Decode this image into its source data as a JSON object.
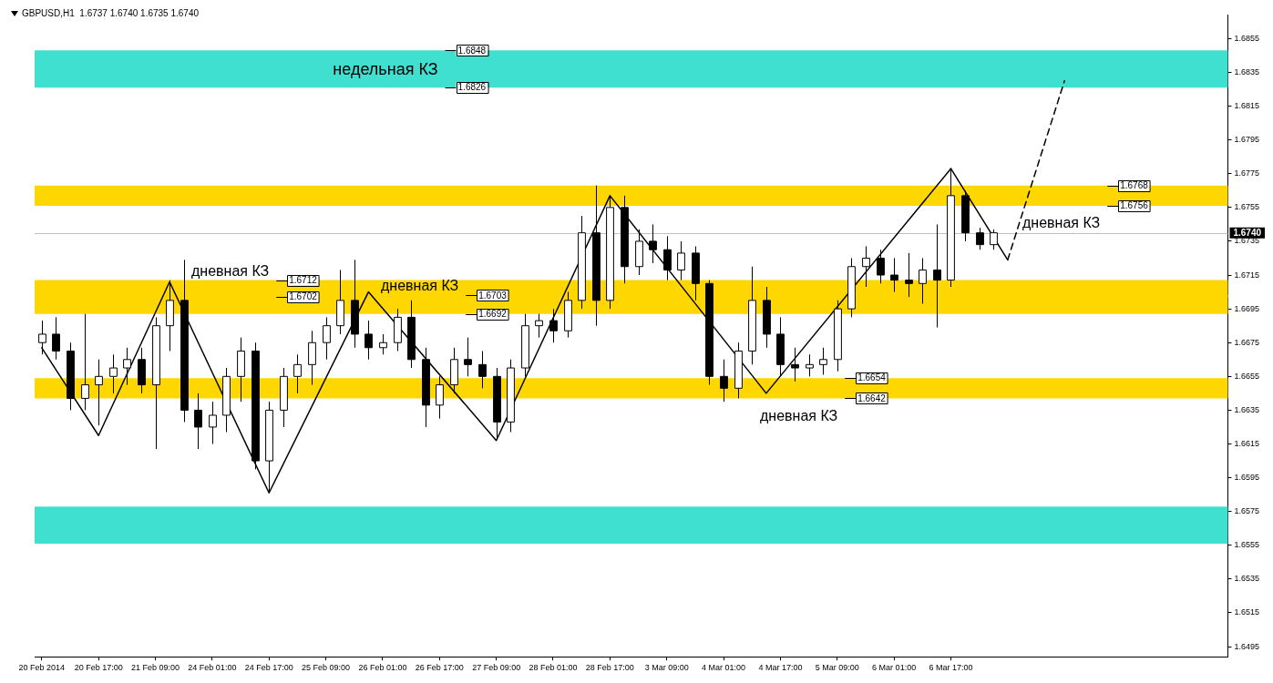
{
  "chart_data": {
    "type": "candlestick",
    "title": "GBPUSD,H1  1.6737 1.6740 1.6735 1.6740",
    "categories": [
      "20 Feb 2014",
      null,
      null,
      null,
      "20 Feb 17:00",
      null,
      null,
      null,
      "21 Feb 09:00",
      null,
      null,
      null,
      "24 Feb 01:00",
      null,
      null,
      null,
      "24 Feb 17:00",
      null,
      null,
      null,
      "25 Feb 09:00",
      null,
      null,
      null,
      "26 Feb 01:00",
      null,
      null,
      null,
      "26 Feb 17:00",
      null,
      null,
      null,
      "27 Feb 09:00",
      null,
      null,
      null,
      "28 Feb 01:00",
      null,
      null,
      null,
      "28 Feb 17:00",
      null,
      null,
      null,
      "3 Mar 09:00",
      null,
      null,
      null,
      "4 Mar 01:00",
      null,
      null,
      null,
      "4 Mar 17:00",
      null,
      null,
      null,
      "5 Mar 09:00",
      null,
      null,
      null,
      "6 Mar 01:00",
      null,
      null,
      null,
      "6 Mar 17:00",
      null,
      null,
      null,
      null,
      null,
      null,
      null,
      null,
      null,
      null,
      null,
      null,
      null,
      null,
      null,
      null,
      null,
      null,
      null
    ],
    "ohlc": [
      [
        1.6675,
        1.6688,
        1.6668,
        1.668
      ],
      [
        1.668,
        1.669,
        1.6665,
        1.667
      ],
      [
        1.667,
        1.6675,
        1.6635,
        1.6642
      ],
      [
        1.6642,
        1.6692,
        1.6635,
        1.665
      ],
      [
        1.665,
        1.6665,
        1.6626,
        1.6655
      ],
      [
        1.6655,
        1.6668,
        1.6645,
        1.666
      ],
      [
        1.666,
        1.6672,
        1.665,
        1.6665
      ],
      [
        1.6665,
        1.6672,
        1.6645,
        1.665
      ],
      [
        1.665,
        1.669,
        1.6612,
        1.6685
      ],
      [
        1.6685,
        1.6712,
        1.667,
        1.67
      ],
      [
        1.67,
        1.6724,
        1.6628,
        1.6635
      ],
      [
        1.6635,
        1.6645,
        1.6612,
        1.6625
      ],
      [
        1.6625,
        1.664,
        1.6615,
        1.6632
      ],
      [
        1.6632,
        1.666,
        1.6622,
        1.6655
      ],
      [
        1.6655,
        1.6678,
        1.664,
        1.667
      ],
      [
        1.667,
        1.6675,
        1.66,
        1.6605
      ],
      [
        1.6605,
        1.664,
        1.6587,
        1.6635
      ],
      [
        1.6635,
        1.666,
        1.6625,
        1.6655
      ],
      [
        1.6655,
        1.6668,
        1.6645,
        1.6662
      ],
      [
        1.6662,
        1.6682,
        1.665,
        1.6675
      ],
      [
        1.6675,
        1.669,
        1.6665,
        1.6685
      ],
      [
        1.6685,
        1.6718,
        1.668,
        1.67
      ],
      [
        1.67,
        1.6724,
        1.6672,
        1.668
      ],
      [
        1.668,
        1.6688,
        1.6665,
        1.6672
      ],
      [
        1.6672,
        1.668,
        1.6668,
        1.6675
      ],
      [
        1.6675,
        1.6695,
        1.667,
        1.669
      ],
      [
        1.669,
        1.67,
        1.666,
        1.6665
      ],
      [
        1.6665,
        1.6672,
        1.6625,
        1.6638
      ],
      [
        1.6638,
        1.6655,
        1.663,
        1.665
      ],
      [
        1.665,
        1.6672,
        1.6645,
        1.6665
      ],
      [
        1.6665,
        1.6678,
        1.6655,
        1.6662
      ],
      [
        1.6662,
        1.667,
        1.6648,
        1.6655
      ],
      [
        1.6655,
        1.666,
        1.6618,
        1.6628
      ],
      [
        1.6628,
        1.6665,
        1.6622,
        1.666
      ],
      [
        1.666,
        1.6692,
        1.6655,
        1.6685
      ],
      [
        1.6685,
        1.6692,
        1.6678,
        1.6688
      ],
      [
        1.6688,
        1.6695,
        1.6675,
        1.6682
      ],
      [
        1.6682,
        1.6705,
        1.6678,
        1.67
      ],
      [
        1.67,
        1.675,
        1.6695,
        1.674
      ],
      [
        1.674,
        1.6768,
        1.6685,
        1.67
      ],
      [
        1.67,
        1.6762,
        1.6695,
        1.6755
      ],
      [
        1.6755,
        1.6762,
        1.671,
        1.672
      ],
      [
        1.672,
        1.6742,
        1.6715,
        1.6735
      ],
      [
        1.6735,
        1.6745,
        1.6722,
        1.673
      ],
      [
        1.673,
        1.6738,
        1.6712,
        1.6718
      ],
      [
        1.6718,
        1.6735,
        1.6712,
        1.6728
      ],
      [
        1.6728,
        1.6732,
        1.67,
        1.671
      ],
      [
        1.671,
        1.6712,
        1.665,
        1.6655
      ],
      [
        1.6655,
        1.6665,
        1.664,
        1.6648
      ],
      [
        1.6648,
        1.6675,
        1.6642,
        1.667
      ],
      [
        1.667,
        1.672,
        1.6662,
        1.67
      ],
      [
        1.67,
        1.6708,
        1.6672,
        1.668
      ],
      [
        1.668,
        1.669,
        1.6655,
        1.6662
      ],
      [
        1.6662,
        1.6672,
        1.6652,
        1.666
      ],
      [
        1.666,
        1.6668,
        1.6655,
        1.6662
      ],
      [
        1.6662,
        1.6672,
        1.6656,
        1.6665
      ],
      [
        1.6665,
        1.67,
        1.6658,
        1.6695
      ],
      [
        1.6695,
        1.6725,
        1.669,
        1.672
      ],
      [
        1.672,
        1.6732,
        1.6708,
        1.6725
      ],
      [
        1.6725,
        1.673,
        1.671,
        1.6715
      ],
      [
        1.6715,
        1.6725,
        1.6705,
        1.6712
      ],
      [
        1.6712,
        1.6728,
        1.6702,
        1.671
      ],
      [
        1.671,
        1.6725,
        1.6698,
        1.6718
      ],
      [
        1.6718,
        1.6745,
        1.6684,
        1.6712
      ],
      [
        1.6712,
        1.6777,
        1.6708,
        1.6762
      ],
      [
        1.6762,
        1.6765,
        1.6735,
        1.674
      ],
      [
        1.674,
        1.6743,
        1.673,
        1.6733
      ],
      [
        1.6733,
        1.6742,
        1.673,
        1.674
      ],
      null,
      null,
      null,
      null,
      null,
      null,
      null,
      null,
      null,
      null,
      null,
      null,
      null,
      null,
      null,
      null
    ],
    "series": [
      {
        "type": "line",
        "color": "#000000",
        "line_style": "solid",
        "values": [
          1.6672,
          null,
          null,
          null,
          1.662,
          null,
          null,
          null,
          null,
          1.6711,
          null,
          null,
          null,
          null,
          null,
          null,
          1.6586,
          null,
          null,
          null,
          null,
          null,
          null,
          1.6705,
          null,
          null,
          null,
          null,
          null,
          null,
          null,
          null,
          1.6617,
          null,
          null,
          null,
          null,
          null,
          null,
          null,
          1.6762,
          null,
          null,
          null,
          null,
          null,
          null,
          null,
          null,
          null,
          null,
          1.6645,
          null,
          null,
          null,
          null,
          null,
          null,
          null,
          null,
          null,
          null,
          null,
          null,
          1.6778,
          null,
          null,
          null,
          null,
          null,
          null,
          null,
          null,
          null,
          null,
          null,
          null,
          null,
          null,
          null,
          null,
          null,
          null,
          null
        ]
      },
      {
        "type": "line",
        "color": "#000000",
        "line_style": "solid",
        "values": [
          null,
          null,
          null,
          null,
          null,
          null,
          null,
          null,
          null,
          null,
          null,
          null,
          null,
          null,
          null,
          null,
          null,
          null,
          null,
          null,
          null,
          null,
          null,
          null,
          null,
          null,
          null,
          null,
          null,
          null,
          null,
          null,
          null,
          null,
          null,
          null,
          null,
          null,
          null,
          null,
          null,
          null,
          null,
          null,
          null,
          null,
          null,
          null,
          null,
          null,
          null,
          null,
          null,
          null,
          null,
          null,
          null,
          null,
          null,
          null,
          null,
          null,
          null,
          null,
          1.6778,
          null,
          null,
          null,
          1.6724,
          null,
          null,
          null,
          null,
          null,
          null,
          null,
          null,
          null,
          null,
          null,
          null,
          null,
          null,
          null
        ]
      },
      {
        "type": "line",
        "color": "#000000",
        "line_style": "dashed",
        "values": [
          null,
          null,
          null,
          null,
          null,
          null,
          null,
          null,
          null,
          null,
          null,
          null,
          null,
          null,
          null,
          null,
          null,
          null,
          null,
          null,
          null,
          null,
          null,
          null,
          null,
          null,
          null,
          null,
          null,
          null,
          null,
          null,
          null,
          null,
          null,
          null,
          null,
          null,
          null,
          null,
          null,
          null,
          null,
          null,
          null,
          null,
          null,
          null,
          null,
          null,
          null,
          null,
          null,
          null,
          null,
          null,
          null,
          null,
          null,
          null,
          null,
          null,
          null,
          null,
          null,
          null,
          null,
          null,
          1.6724,
          null,
          null,
          null,
          1.683,
          null,
          null,
          null,
          null,
          null,
          null,
          null,
          null,
          null,
          null,
          null
        ]
      }
    ],
    "bands": [
      {
        "axis": "y",
        "from": 1.6702,
        "to": 1.6712,
        "label": "дневная КЗ",
        "color": "#ffd700"
      },
      {
        "axis": "y",
        "from": 1.6826,
        "to": 1.6848,
        "label": "недельная КЗ",
        "color": "#40e0d0"
      },
      {
        "axis": "y",
        "from": 1.6692,
        "to": 1.6703,
        "label": "дневная КЗ",
        "color": "#ffd700"
      },
      {
        "axis": "y",
        "from": 1.6642,
        "to": 1.6654,
        "label": "дневная КЗ",
        "color": "#ffd700"
      },
      {
        "axis": "y",
        "from": 1.6756,
        "to": 1.6768,
        "label": "дневная КЗ",
        "color": "#ffd700"
      },
      {
        "axis": "y",
        "from": 1.6556,
        "to": 1.6578,
        "color": "#40e0d0"
      }
    ],
    "annotations": [
      {
        "text": "1.6712",
        "y": 1.6712
      },
      {
        "text": "1.6702",
        "y": 1.6702
      },
      {
        "text": "1.6848",
        "y": 1.6848
      },
      {
        "text": "1.6826",
        "y": 1.6826
      },
      {
        "text": "1.6703",
        "y": 1.6703
      },
      {
        "text": "1.6692",
        "y": 1.6692
      },
      {
        "text": "1.6654",
        "y": 1.6654
      },
      {
        "text": "1.6642",
        "y": 1.6642
      },
      {
        "text": "1.6768",
        "y": 1.6768
      },
      {
        "text": "1.6756",
        "y": 1.6756
      }
    ],
    "ref_lines": [
      {
        "axis": "y",
        "value": 1.674,
        "label": "1.6740",
        "color": "#c0c0c0"
      }
    ],
    "ylim": [
      1.6489,
      1.6869
    ],
    "yticks": [
      1.6495,
      1.6515,
      1.6535,
      1.6555,
      1.6575,
      1.6595,
      1.6615,
      1.6635,
      1.6655,
      1.6675,
      1.6695,
      1.6715,
      1.6735,
      1.6755,
      1.6775,
      1.6795,
      1.6815,
      1.6835,
      1.6855
    ]
  }
}
